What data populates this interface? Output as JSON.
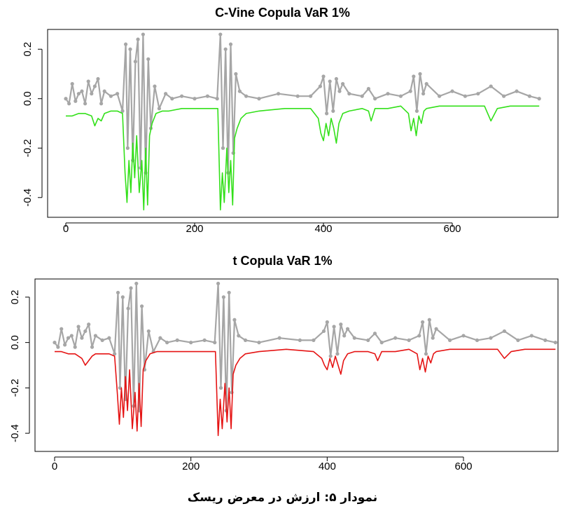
{
  "chart_data": [
    {
      "type": "line",
      "title": "C-Vine Copula VaR 1%",
      "xlabel": "",
      "ylabel": "",
      "xlim": [
        0,
        735
      ],
      "ylim": [
        -0.48,
        0.28
      ],
      "x_ticks": [
        0,
        200,
        400,
        600
      ],
      "x_tick_labels": [
        "0",
        "200",
        "400",
        "600"
      ],
      "y_ticks": [
        0.2,
        0.0,
        -0.2,
        -0.4
      ],
      "y_tick_labels": [
        "0.2",
        "0.0",
        "-0.2",
        "-0.4"
      ],
      "grid": false,
      "legend": "none",
      "series": [
        {
          "role": "returns",
          "color": "#a6a6a6",
          "markers": true,
          "x": [
            0,
            5,
            10,
            15,
            20,
            25,
            30,
            35,
            40,
            45,
            50,
            55,
            60,
            70,
            80,
            88,
            93,
            96,
            100,
            104,
            108,
            112,
            116,
            120,
            124,
            128,
            132,
            138,
            145,
            155,
            165,
            180,
            200,
            220,
            235,
            240,
            244,
            248,
            252,
            256,
            260,
            264,
            270,
            280,
            300,
            330,
            360,
            380,
            395,
            400,
            405,
            410,
            415,
            420,
            425,
            430,
            440,
            460,
            470,
            480,
            500,
            520,
            535,
            540,
            545,
            550,
            555,
            560,
            580,
            600,
            620,
            640,
            660,
            680,
            700,
            720,
            735
          ],
          "y": [
            0.0,
            -0.02,
            0.06,
            -0.01,
            0.02,
            0.03,
            -0.02,
            0.07,
            0.02,
            0.05,
            0.08,
            -0.02,
            0.03,
            0.01,
            0.02,
            -0.05,
            0.22,
            -0.2,
            0.2,
            -0.25,
            0.15,
            0.24,
            -0.28,
            0.26,
            -0.3,
            0.16,
            -0.12,
            0.05,
            -0.04,
            0.02,
            0.0,
            0.01,
            0.0,
            0.01,
            0.0,
            0.26,
            -0.2,
            0.2,
            -0.3,
            0.22,
            -0.22,
            0.1,
            0.03,
            0.01,
            0.0,
            0.02,
            0.01,
            0.01,
            0.05,
            0.09,
            -0.06,
            0.07,
            -0.05,
            0.08,
            0.03,
            0.06,
            0.02,
            0.01,
            0.04,
            0.0,
            0.02,
            0.01,
            0.03,
            0.09,
            -0.05,
            0.1,
            0.02,
            0.06,
            0.01,
            0.03,
            0.01,
            0.02,
            0.05,
            0.01,
            0.03,
            0.01,
            0.0
          ]
        },
        {
          "role": "VaR",
          "color": "#33e01a",
          "markers": false,
          "x": [
            0,
            10,
            20,
            30,
            40,
            45,
            50,
            55,
            60,
            70,
            80,
            88,
            92,
            95,
            98,
            101,
            104,
            107,
            110,
            114,
            118,
            121,
            124,
            127,
            130,
            134,
            140,
            150,
            160,
            180,
            200,
            220,
            236,
            240,
            243,
            246,
            250,
            253,
            256,
            259,
            262,
            266,
            272,
            280,
            300,
            340,
            380,
            392,
            396,
            400,
            404,
            408,
            412,
            416,
            420,
            424,
            430,
            440,
            460,
            470,
            474,
            480,
            500,
            520,
            532,
            536,
            540,
            544,
            548,
            552,
            556,
            560,
            580,
            600,
            620,
            650,
            660,
            670,
            690,
            710,
            735
          ],
          "y": [
            -0.07,
            -0.07,
            -0.06,
            -0.06,
            -0.07,
            -0.11,
            -0.08,
            -0.09,
            -0.06,
            -0.05,
            -0.05,
            -0.06,
            -0.3,
            -0.42,
            -0.25,
            -0.38,
            -0.18,
            -0.32,
            -0.15,
            -0.38,
            -0.25,
            -0.45,
            -0.2,
            -0.43,
            -0.15,
            -0.1,
            -0.06,
            -0.05,
            -0.05,
            -0.04,
            -0.04,
            -0.04,
            -0.04,
            -0.45,
            -0.3,
            -0.42,
            -0.2,
            -0.38,
            -0.25,
            -0.43,
            -0.16,
            -0.12,
            -0.08,
            -0.06,
            -0.05,
            -0.04,
            -0.04,
            -0.08,
            -0.14,
            -0.17,
            -0.1,
            -0.15,
            -0.08,
            -0.12,
            -0.18,
            -0.1,
            -0.06,
            -0.05,
            -0.04,
            -0.05,
            -0.09,
            -0.04,
            -0.04,
            -0.03,
            -0.06,
            -0.13,
            -0.08,
            -0.15,
            -0.07,
            -0.1,
            -0.05,
            -0.04,
            -0.03,
            -0.03,
            -0.03,
            -0.03,
            -0.09,
            -0.04,
            -0.03,
            -0.03,
            -0.03
          ]
        }
      ]
    },
    {
      "type": "line",
      "title": "t Copula VaR 1%",
      "xlabel": "",
      "ylabel": "",
      "xlim": [
        0,
        735
      ],
      "ylim": [
        -0.48,
        0.28
      ],
      "x_ticks": [
        0,
        200,
        400,
        600
      ],
      "x_tick_labels": [
        "0",
        "200",
        "400",
        "600"
      ],
      "y_ticks": [
        0.2,
        0.0,
        -0.2,
        -0.4
      ],
      "y_tick_labels": [
        "0.2",
        "0.0",
        "-0.2",
        "-0.4"
      ],
      "grid": false,
      "legend": "none",
      "series": [
        {
          "role": "returns",
          "color": "#a6a6a6",
          "markers": true,
          "x": [
            0,
            5,
            10,
            15,
            20,
            25,
            30,
            35,
            40,
            45,
            50,
            55,
            60,
            70,
            80,
            88,
            93,
            96,
            100,
            104,
            108,
            112,
            116,
            120,
            124,
            128,
            132,
            138,
            145,
            155,
            165,
            180,
            200,
            220,
            235,
            240,
            244,
            248,
            252,
            256,
            260,
            264,
            270,
            280,
            300,
            330,
            360,
            380,
            395,
            400,
            405,
            410,
            415,
            420,
            425,
            430,
            440,
            460,
            470,
            480,
            500,
            520,
            535,
            540,
            545,
            550,
            555,
            560,
            580,
            600,
            620,
            640,
            660,
            680,
            700,
            720,
            735
          ],
          "y": [
            0.0,
            -0.02,
            0.06,
            -0.01,
            0.02,
            0.03,
            -0.02,
            0.07,
            0.02,
            0.05,
            0.08,
            -0.02,
            0.03,
            0.01,
            0.02,
            -0.05,
            0.22,
            -0.2,
            0.2,
            -0.25,
            0.15,
            0.24,
            -0.28,
            0.26,
            -0.3,
            0.16,
            -0.12,
            0.05,
            -0.04,
            0.02,
            0.0,
            0.01,
            0.0,
            0.01,
            0.0,
            0.26,
            -0.2,
            0.2,
            -0.3,
            0.22,
            -0.22,
            0.1,
            0.03,
            0.01,
            0.0,
            0.02,
            0.01,
            0.01,
            0.05,
            0.09,
            -0.06,
            0.07,
            -0.05,
            0.08,
            0.03,
            0.06,
            0.02,
            0.01,
            0.04,
            0.0,
            0.02,
            0.01,
            0.03,
            0.09,
            -0.05,
            0.1,
            0.02,
            0.06,
            0.01,
            0.03,
            0.01,
            0.02,
            0.05,
            0.01,
            0.03,
            0.01,
            0.0
          ]
        },
        {
          "role": "VaR",
          "color": "#e51414",
          "markers": false,
          "x": [
            0,
            10,
            20,
            30,
            40,
            45,
            50,
            55,
            60,
            70,
            80,
            88,
            92,
            95,
            98,
            101,
            104,
            107,
            110,
            114,
            118,
            121,
            124,
            127,
            130,
            134,
            140,
            150,
            160,
            180,
            200,
            220,
            236,
            240,
            243,
            246,
            250,
            253,
            256,
            259,
            262,
            266,
            272,
            280,
            300,
            340,
            380,
            392,
            396,
            400,
            404,
            408,
            412,
            416,
            420,
            424,
            430,
            440,
            460,
            470,
            474,
            480,
            500,
            520,
            532,
            536,
            540,
            544,
            548,
            552,
            556,
            560,
            580,
            600,
            620,
            650,
            660,
            670,
            690,
            710,
            735
          ],
          "y": [
            -0.04,
            -0.04,
            -0.05,
            -0.05,
            -0.07,
            -0.1,
            -0.08,
            -0.06,
            -0.05,
            -0.05,
            -0.05,
            -0.06,
            -0.22,
            -0.36,
            -0.2,
            -0.33,
            -0.15,
            -0.3,
            -0.12,
            -0.38,
            -0.22,
            -0.39,
            -0.18,
            -0.37,
            -0.12,
            -0.08,
            -0.05,
            -0.04,
            -0.04,
            -0.04,
            -0.04,
            -0.04,
            -0.04,
            -0.41,
            -0.25,
            -0.38,
            -0.18,
            -0.35,
            -0.2,
            -0.38,
            -0.14,
            -0.1,
            -0.07,
            -0.05,
            -0.04,
            -0.03,
            -0.04,
            -0.07,
            -0.1,
            -0.12,
            -0.07,
            -0.11,
            -0.06,
            -0.1,
            -0.14,
            -0.08,
            -0.05,
            -0.04,
            -0.04,
            -0.05,
            -0.08,
            -0.04,
            -0.04,
            -0.03,
            -0.05,
            -0.12,
            -0.07,
            -0.13,
            -0.06,
            -0.09,
            -0.05,
            -0.04,
            -0.03,
            -0.03,
            -0.03,
            -0.03,
            -0.07,
            -0.04,
            -0.03,
            -0.03,
            -0.03
          ]
        }
      ]
    }
  ],
  "caption": "نمودار ۵: ارزش در معرض ریسک"
}
